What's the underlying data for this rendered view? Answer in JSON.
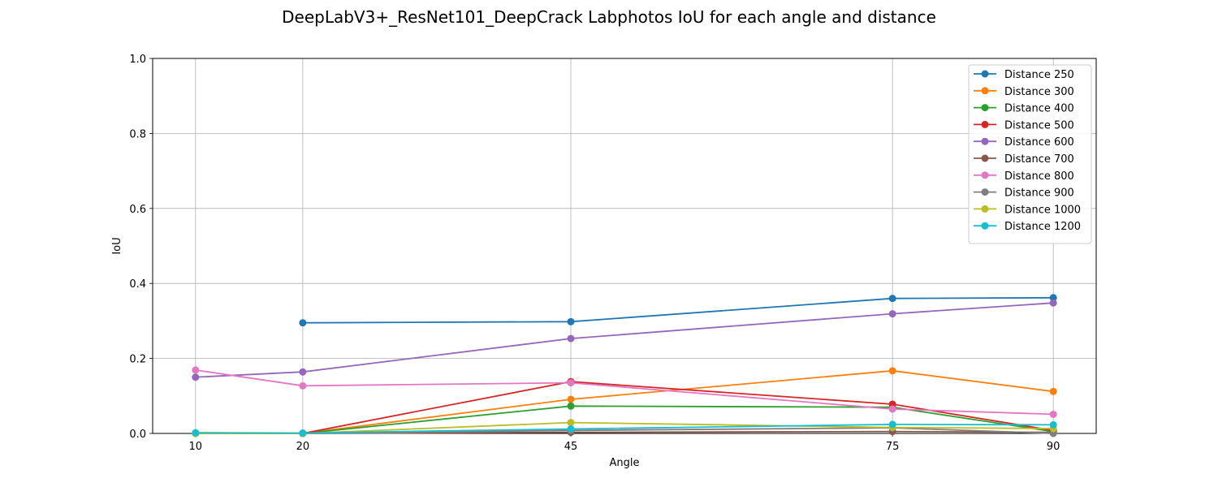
{
  "chart_data": {
    "type": "line",
    "title": "DeepLabV3+_ResNet101_DeepCrack Labphotos IoU for each angle and distance",
    "xlabel": "Angle",
    "ylabel": "IoU",
    "x": [
      10,
      20,
      45,
      75,
      90
    ],
    "x_ticks": [
      "10",
      "20",
      "45",
      "75",
      "90"
    ],
    "xlim": [
      6,
      94
    ],
    "ylim": [
      0,
      1.0
    ],
    "y_ticks": [
      "0.0",
      "0.2",
      "0.4",
      "0.6",
      "0.8",
      "1.0"
    ],
    "grid": true,
    "legend_position": "top-right",
    "series": [
      {
        "name": "Distance 250",
        "color": "#1f77b4",
        "values": [
          null,
          0.295,
          0.298,
          0.36,
          0.362
        ]
      },
      {
        "name": "Distance 300",
        "color": "#ff7f0e",
        "values": [
          0.0,
          0.0,
          0.091,
          0.167,
          0.112
        ]
      },
      {
        "name": "Distance 400",
        "color": "#2ca02c",
        "values": [
          0.0,
          0.0,
          0.073,
          0.07,
          0.005
        ]
      },
      {
        "name": "Distance 500",
        "color": "#d62728",
        "values": [
          0.0,
          0.0,
          0.138,
          0.078,
          0.008
        ]
      },
      {
        "name": "Distance 600",
        "color": "#9467bd",
        "values": [
          0.15,
          0.164,
          0.253,
          0.319,
          0.348
        ]
      },
      {
        "name": "Distance 700",
        "color": "#8c564b",
        "values": [
          0.0,
          0.0,
          0.003,
          0.005,
          0.003
        ]
      },
      {
        "name": "Distance 800",
        "color": "#e377c2",
        "values": [
          0.169,
          0.127,
          0.135,
          0.065,
          0.051
        ]
      },
      {
        "name": "Distance 900",
        "color": "#7f7f7f",
        "values": [
          0.0,
          0.0,
          0.008,
          0.015,
          0.0
        ]
      },
      {
        "name": "Distance 1000",
        "color": "#bcbd22",
        "values": [
          0.0,
          0.0,
          0.029,
          0.016,
          0.013
        ]
      },
      {
        "name": "Distance 1200",
        "color": "#17becf",
        "values": [
          0.002,
          0.001,
          0.012,
          0.024,
          0.023
        ]
      }
    ]
  }
}
